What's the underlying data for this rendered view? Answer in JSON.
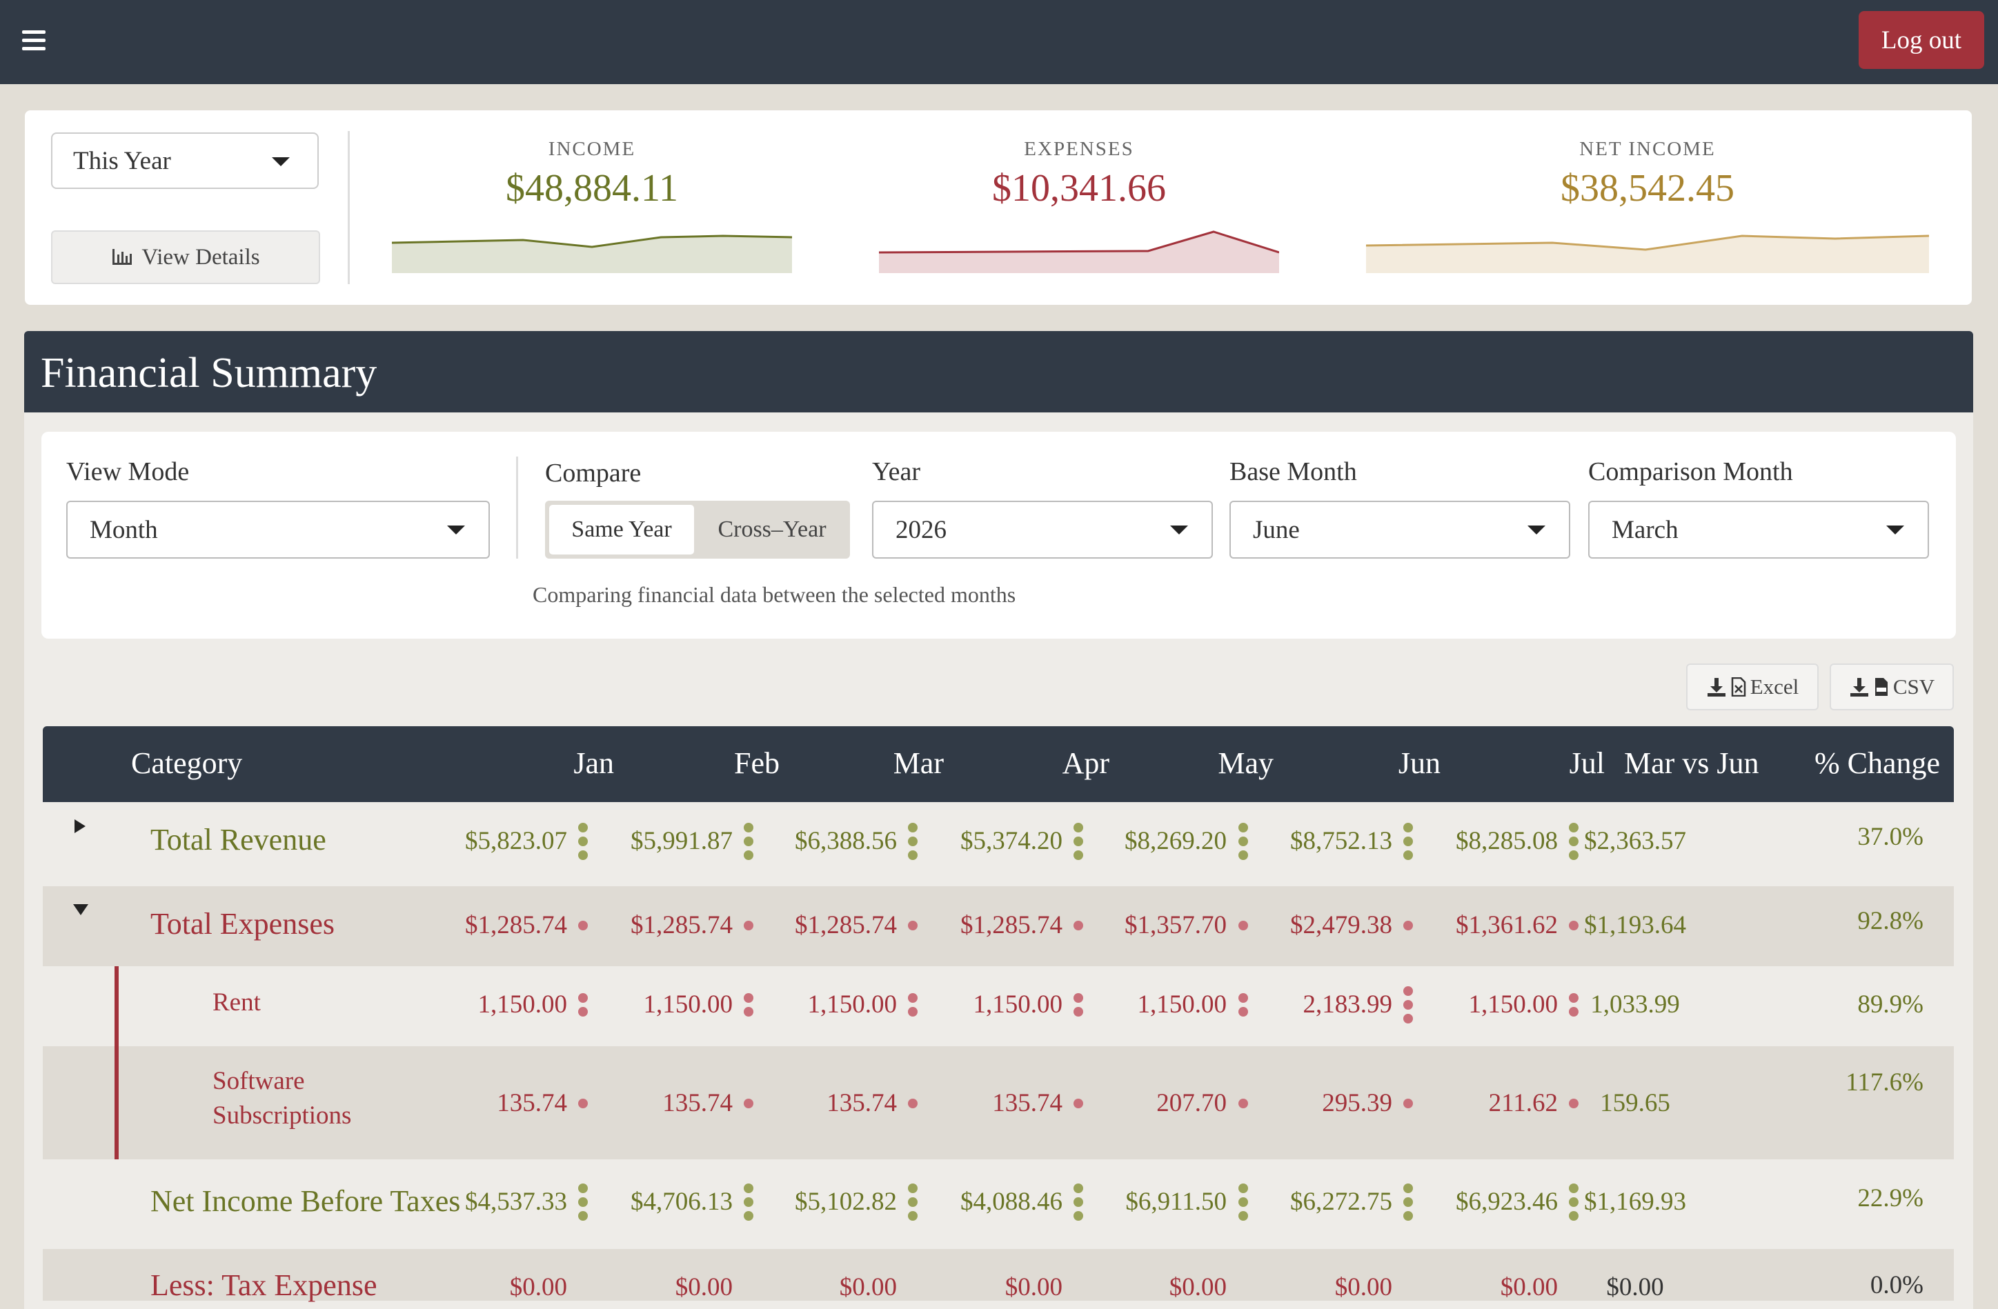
{
  "topbar": {
    "menu_icon": "hamburger-icon",
    "logout_label": "Log out"
  },
  "summary": {
    "period": "This Year",
    "view_details": "View Details",
    "income": {
      "label": "INCOME",
      "value": "$48,884.11",
      "color": "#6a7526"
    },
    "expenses": {
      "label": "EXPENSES",
      "value": "$10,341.66",
      "color": "#a2323b"
    },
    "net_income": {
      "label": "NET INCOME",
      "value": "$38,542.45",
      "color": "#c9a45d"
    }
  },
  "financial_summary": {
    "title": "Financial Summary",
    "filters": {
      "view_mode_label": "View Mode",
      "view_mode": "Month",
      "compare_label": "Compare",
      "compare_same": "Same Year",
      "compare_cross": "Cross–Year",
      "year_label": "Year",
      "year": "2026",
      "base_month_label": "Base Month",
      "base_month": "June",
      "comparison_month_label": "Comparison Month",
      "comparison_month": "March",
      "note": "Comparing financial data between the selected months"
    },
    "export": {
      "excel": "Excel",
      "csv": "CSV"
    }
  },
  "table": {
    "columns": [
      "Category",
      "Jan",
      "Feb",
      "Mar",
      "Apr",
      "May",
      "Jun",
      "Jul",
      "Mar vs Jun",
      "% Change"
    ],
    "rows": [
      {
        "label": "Total Revenue",
        "values": [
          "$5,823.07",
          "$5,991.87",
          "$6,388.56",
          "$5,374.20",
          "$8,269.20",
          "$8,752.13",
          "$8,285.08"
        ],
        "diff": "$2,363.57",
        "pct": "37.0%"
      },
      {
        "label": "Total Expenses",
        "values": [
          "$1,285.74",
          "$1,285.74",
          "$1,285.74",
          "$1,285.74",
          "$1,357.70",
          "$2,479.38",
          "$1,361.62"
        ],
        "diff": "$1,193.64",
        "pct": "92.8%"
      },
      {
        "label": "Rent",
        "values": [
          "1,150.00",
          "1,150.00",
          "1,150.00",
          "1,150.00",
          "1,150.00",
          "2,183.99",
          "1,150.00"
        ],
        "diff": "1,033.99",
        "pct": "89.9%"
      },
      {
        "label_line1": "Software",
        "label_line2": "Subscriptions",
        "values": [
          "135.74",
          "135.74",
          "135.74",
          "135.74",
          "207.70",
          "295.39",
          "211.62"
        ],
        "diff": "159.65",
        "pct": "117.6%"
      },
      {
        "label": "Net Income Before Taxes",
        "values": [
          "$4,537.33",
          "$4,706.13",
          "$5,102.82",
          "$4,088.46",
          "$6,911.50",
          "$6,272.75",
          "$6,923.46"
        ],
        "diff": "$1,169.93",
        "pct": "22.9%"
      },
      {
        "label": "Less: Tax Expense",
        "values": [
          "$0.00",
          "$0.00",
          "$0.00",
          "$0.00",
          "$0.00",
          "$0.00",
          "$0.00"
        ],
        "diff": "$0.00",
        "pct": "0.0%"
      }
    ]
  }
}
